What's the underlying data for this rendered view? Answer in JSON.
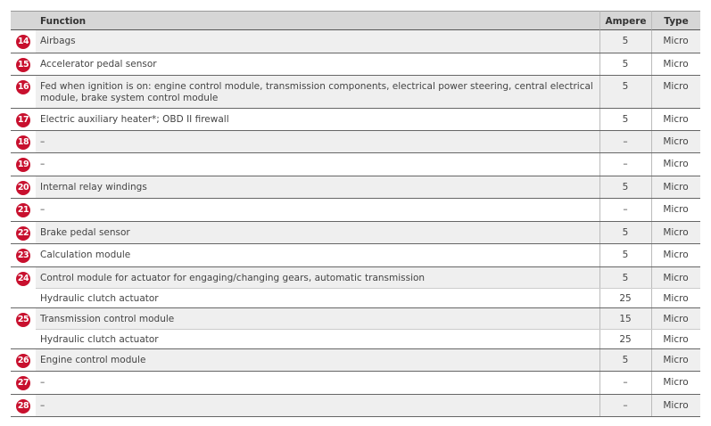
{
  "header": {
    "function": "Function",
    "ampere": "Ampere",
    "type": "Type"
  },
  "items": [
    {
      "number": "14",
      "entries": [
        {
          "function": "Airbags",
          "ampere": "5",
          "type": "Micro"
        }
      ]
    },
    {
      "number": "15",
      "entries": [
        {
          "function": "Accelerator pedal sensor",
          "ampere": "5",
          "type": "Micro"
        }
      ]
    },
    {
      "number": "16",
      "entries": [
        {
          "function": "Fed when ignition is on: engine control module, transmission components, electrical power steering, central electrical module, brake system control module",
          "ampere": "5",
          "type": "Micro"
        }
      ]
    },
    {
      "number": "17",
      "entries": [
        {
          "function": "Electric auxiliary heater*; OBD II firewall",
          "ampere": "5",
          "type": "Micro"
        }
      ]
    },
    {
      "number": "18",
      "entries": [
        {
          "function": "–",
          "ampere": "–",
          "type": "Micro"
        }
      ]
    },
    {
      "number": "19",
      "entries": [
        {
          "function": "–",
          "ampere": "–",
          "type": "Micro"
        }
      ]
    },
    {
      "number": "20",
      "entries": [
        {
          "function": "Internal relay windings",
          "ampere": "5",
          "type": "Micro"
        }
      ]
    },
    {
      "number": "21",
      "entries": [
        {
          "function": "–",
          "ampere": "–",
          "type": "Micro"
        }
      ]
    },
    {
      "number": "22",
      "entries": [
        {
          "function": "Brake pedal sensor",
          "ampere": "5",
          "type": "Micro"
        }
      ]
    },
    {
      "number": "23",
      "entries": [
        {
          "function": "Calculation module",
          "ampere": "5",
          "type": "Micro"
        }
      ]
    },
    {
      "number": "24",
      "entries": [
        {
          "function": "Control module for actuator for engaging/changing gears, automatic transmission",
          "ampere": "5",
          "type": "Micro"
        },
        {
          "function": "Hydraulic clutch actuator",
          "ampere": "25",
          "type": "Micro"
        }
      ]
    },
    {
      "number": "25",
      "entries": [
        {
          "function": "Transmission control module",
          "ampere": "15",
          "type": "Micro"
        },
        {
          "function": "Hydraulic clutch actuator",
          "ampere": "25",
          "type": "Micro"
        }
      ]
    },
    {
      "number": "26",
      "entries": [
        {
          "function": "Engine control module",
          "ampere": "5",
          "type": "Micro"
        }
      ]
    },
    {
      "number": "27",
      "entries": [
        {
          "function": "–",
          "ampere": "–",
          "type": "Micro"
        }
      ]
    },
    {
      "number": "28",
      "entries": [
        {
          "function": "–",
          "ampere": "–",
          "type": "Micro"
        }
      ]
    }
  ]
}
